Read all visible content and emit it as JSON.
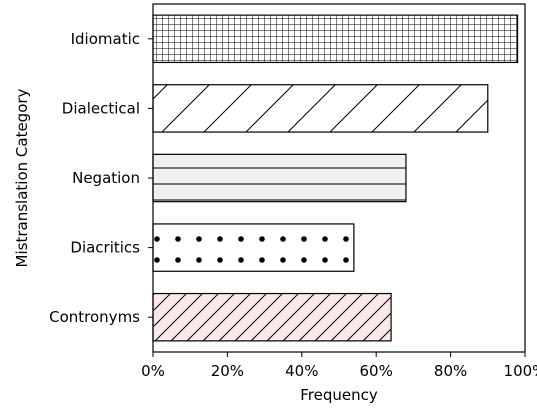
{
  "chart_data": {
    "type": "bar",
    "orientation": "horizontal",
    "categories": [
      "Idiomatic",
      "Dialectical",
      "Negation",
      "Diacritics",
      "Contronyms"
    ],
    "values": [
      0.98,
      0.9,
      0.68,
      0.54,
      0.64
    ],
    "xlim": [
      0,
      1
    ],
    "xticks": [
      0,
      0.2,
      0.4,
      0.6,
      0.8,
      1.0
    ],
    "xtick_labels": [
      "0%",
      "20%",
      "40%",
      "60%",
      "80%",
      "100%"
    ],
    "xlabel": "Frequency",
    "ylabel": "Mistranslation Category",
    "grid": false,
    "bar_styles": [
      {
        "fill": "#ffffff",
        "hatch": "grid"
      },
      {
        "fill": "#ffffff",
        "hatch": "diagonal-wide"
      },
      {
        "fill": "#f0f0f0",
        "hatch": "horizontal"
      },
      {
        "fill": "#ffffff",
        "hatch": "dots"
      },
      {
        "fill": "#fce8e8",
        "hatch": "diagonal-dense"
      }
    ]
  }
}
